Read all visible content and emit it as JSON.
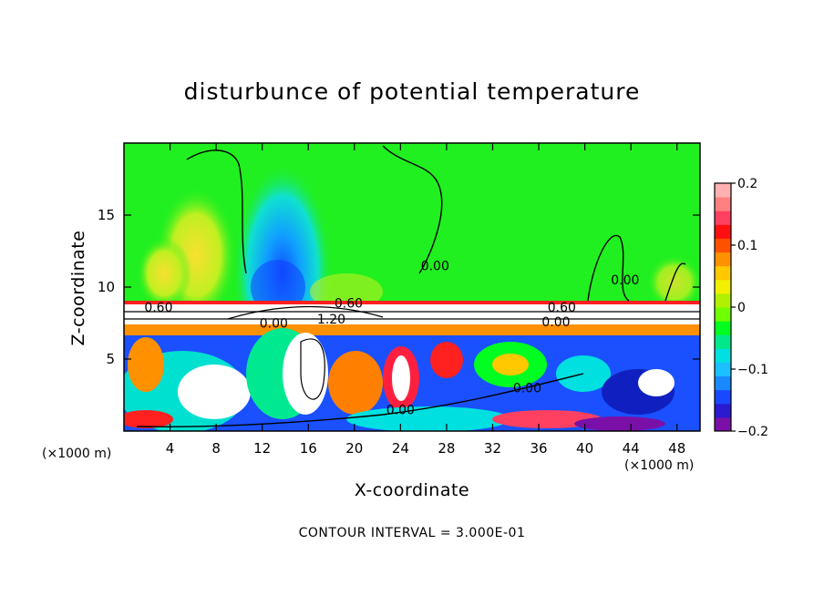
{
  "chart_data": {
    "type": "heatmap",
    "title": "disturbunce of potential temperature",
    "xlabel": "X-coordinate",
    "ylabel": "Z-coordinate",
    "x_unit_label": "(×1000 m)",
    "x_unit_label_right": "(×1000 m)",
    "xlim": [
      0,
      50
    ],
    "ylim": [
      0,
      20
    ],
    "x_ticks": [
      4,
      8,
      12,
      16,
      20,
      24,
      28,
      32,
      36,
      40,
      44,
      48
    ],
    "y_ticks": [
      5,
      10,
      15
    ],
    "colorbar": {
      "range": [
        -0.2,
        0.2
      ],
      "tick_values": [
        0.2,
        0.1,
        0,
        -0.1,
        -0.2
      ],
      "tick_labels": [
        "0.2",
        "0.1",
        "0",
        "−0.1",
        "−0.2"
      ],
      "colors": [
        "#7a10a8",
        "#2a1ad0",
        "#1a48ff",
        "#1a88ff",
        "#1ac0ff",
        "#00e0e0",
        "#00e88a",
        "#00ff20",
        "#70ff00",
        "#b0f000",
        "#f0f000",
        "#ffc800",
        "#ff9000",
        "#ff5000",
        "#ff1010",
        "#ff4060",
        "#ff8080",
        "#ffb0b0"
      ]
    },
    "contour_labels": [
      {
        "text": "0.00",
        "x": 27.0,
        "z": 11.5
      },
      {
        "text": "0.00",
        "x": 43.5,
        "z": 10.5
      },
      {
        "text": "0.60",
        "x": 3.0,
        "z": 8.6
      },
      {
        "text": "0.60",
        "x": 19.5,
        "z": 8.9
      },
      {
        "text": "0.60",
        "x": 38.0,
        "z": 8.6
      },
      {
        "text": "0.00",
        "x": 13.0,
        "z": 7.5
      },
      {
        "text": "1.20",
        "x": 18.0,
        "z": 7.8
      },
      {
        "text": "0.00",
        "x": 37.5,
        "z": 7.6
      },
      {
        "text": "0.00",
        "x": 24.0,
        "z": 1.5
      },
      {
        "text": "0.00",
        "x": 35.0,
        "z": 3.0
      }
    ],
    "contour_interval_label": "CONTOUR INTERVAL = 3.000E-01"
  }
}
